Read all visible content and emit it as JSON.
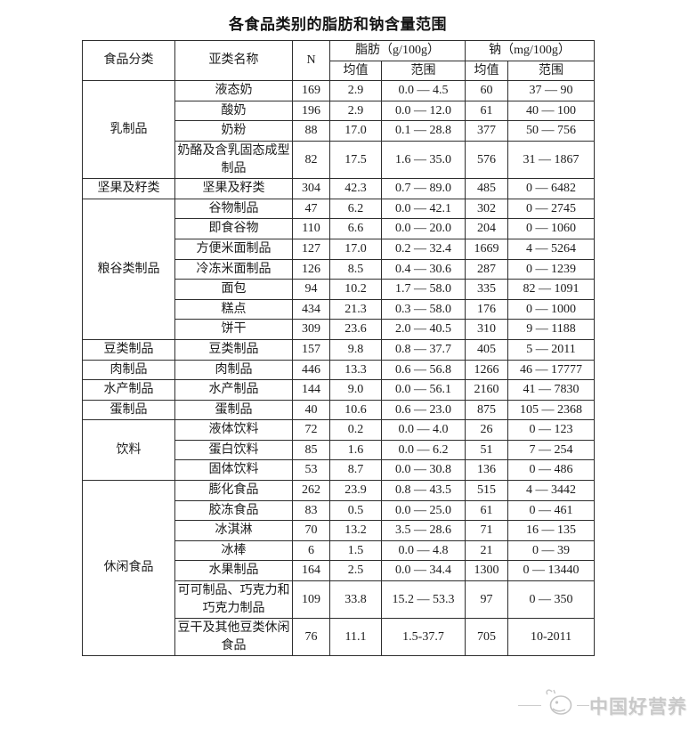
{
  "title": "各食品类别的脂肪和钠含量范围",
  "table": {
    "headers": {
      "category": "食品分类",
      "subcategory": "亚类名称",
      "n": "N",
      "fat": "脂肪（g/100g）",
      "sodium": "钠（mg/100g）",
      "mean": "均值",
      "range": "范围"
    },
    "groups": [
      {
        "category": "乳制品",
        "rows": [
          {
            "name": "液态奶",
            "n": "169",
            "fat_mean": "2.9",
            "fat_range": "0.0 — 4.5",
            "na_mean": "60",
            "na_range": "37 — 90"
          },
          {
            "name": "酸奶",
            "n": "196",
            "fat_mean": "2.9",
            "fat_range": "0.0 — 12.0",
            "na_mean": "61",
            "na_range": "40 — 100"
          },
          {
            "name": "奶粉",
            "n": "88",
            "fat_mean": "17.0",
            "fat_range": "0.1 — 28.8",
            "na_mean": "377",
            "na_range": "50 — 756"
          },
          {
            "name": "奶酪及含乳固态成型制品",
            "n": "82",
            "fat_mean": "17.5",
            "fat_range": "1.6 — 35.0",
            "na_mean": "576",
            "na_range": "31 — 1867"
          }
        ]
      },
      {
        "category": "坚果及籽类",
        "rows": [
          {
            "name": "坚果及籽类",
            "n": "304",
            "fat_mean": "42.3",
            "fat_range": "0.7 — 89.0",
            "na_mean": "485",
            "na_range": "0 — 6482"
          }
        ]
      },
      {
        "category": "粮谷类制品",
        "rows": [
          {
            "name": "谷物制品",
            "n": "47",
            "fat_mean": "6.2",
            "fat_range": "0.0 — 42.1",
            "na_mean": "302",
            "na_range": "0 — 2745"
          },
          {
            "name": "即食谷物",
            "n": "110",
            "fat_mean": "6.6",
            "fat_range": "0.0 — 20.0",
            "na_mean": "204",
            "na_range": "0 — 1060"
          },
          {
            "name": "方便米面制品",
            "n": "127",
            "fat_mean": "17.0",
            "fat_range": "0.2 — 32.4",
            "na_mean": "1669",
            "na_range": "4 — 5264"
          },
          {
            "name": "冷冻米面制品",
            "n": "126",
            "fat_mean": "8.5",
            "fat_range": "0.4 — 30.6",
            "na_mean": "287",
            "na_range": "0 — 1239"
          },
          {
            "name": "面包",
            "n": "94",
            "fat_mean": "10.2",
            "fat_range": "1.7 — 58.0",
            "na_mean": "335",
            "na_range": "82 — 1091"
          },
          {
            "name": "糕点",
            "n": "434",
            "fat_mean": "21.3",
            "fat_range": "0.3 — 58.0",
            "na_mean": "176",
            "na_range": "0 — 1000"
          },
          {
            "name": "饼干",
            "n": "309",
            "fat_mean": "23.6",
            "fat_range": "2.0 — 40.5",
            "na_mean": "310",
            "na_range": "9 — 1188"
          }
        ]
      },
      {
        "category": "豆类制品",
        "rows": [
          {
            "name": "豆类制品",
            "n": "157",
            "fat_mean": "9.8",
            "fat_range": "0.8 — 37.7",
            "na_mean": "405",
            "na_range": "5 — 2011"
          }
        ]
      },
      {
        "category": "肉制品",
        "rows": [
          {
            "name": "肉制品",
            "n": "446",
            "fat_mean": "13.3",
            "fat_range": "0.6 — 56.8",
            "na_mean": "1266",
            "na_range": "46 — 17777"
          }
        ]
      },
      {
        "category": "水产制品",
        "rows": [
          {
            "name": "水产制品",
            "n": "144",
            "fat_mean": "9.0",
            "fat_range": "0.0 — 56.1",
            "na_mean": "2160",
            "na_range": "41 — 7830"
          }
        ]
      },
      {
        "category": "蛋制品",
        "rows": [
          {
            "name": "蛋制品",
            "n": "40",
            "fat_mean": "10.6",
            "fat_range": "0.6 — 23.0",
            "na_mean": "875",
            "na_range": "105 — 2368"
          }
        ]
      },
      {
        "category": "饮料",
        "rows": [
          {
            "name": "液体饮料",
            "n": "72",
            "fat_mean": "0.2",
            "fat_range": "0.0 — 4.0",
            "na_mean": "26",
            "na_range": "0 — 123"
          },
          {
            "name": "蛋白饮料",
            "n": "85",
            "fat_mean": "1.6",
            "fat_range": "0.0 — 6.2",
            "na_mean": "51",
            "na_range": "7 — 254"
          },
          {
            "name": "固体饮料",
            "n": "53",
            "fat_mean": "8.7",
            "fat_range": "0.0 — 30.8",
            "na_mean": "136",
            "na_range": "0 — 486"
          }
        ]
      },
      {
        "category": "休闲食品",
        "rows": [
          {
            "name": "膨化食品",
            "n": "262",
            "fat_mean": "23.9",
            "fat_range": "0.8 — 43.5",
            "na_mean": "515",
            "na_range": "4 — 3442"
          },
          {
            "name": "胶冻食品",
            "n": "83",
            "fat_mean": "0.5",
            "fat_range": "0.0 — 25.0",
            "na_mean": "61",
            "na_range": "0 — 461"
          },
          {
            "name": "冰淇淋",
            "n": "70",
            "fat_mean": "13.2",
            "fat_range": "3.5 — 28.6",
            "na_mean": "71",
            "na_range": "16 — 135"
          },
          {
            "name": "冰棒",
            "n": "6",
            "fat_mean": "1.5",
            "fat_range": "0.0 — 4.8",
            "na_mean": "21",
            "na_range": "0 — 39"
          },
          {
            "name": "水果制品",
            "n": "164",
            "fat_mean": "2.5",
            "fat_range": "0.0 — 34.4",
            "na_mean": "1300",
            "na_range": "0 — 13440"
          },
          {
            "name": "可可制品、巧克力和巧克力制品",
            "n": "109",
            "fat_mean": "33.8",
            "fat_range": "15.2 — 53.3",
            "na_mean": "97",
            "na_range": "0 — 350"
          },
          {
            "name": "豆干及其他豆类休闲食品",
            "n": "76",
            "fat_mean": "11.1",
            "fat_range": "1.5-37.7",
            "na_mean": "705",
            "na_range": "10-2011"
          }
        ]
      }
    ]
  },
  "watermark": {
    "text": "中国好营养",
    "color": "#c9c9c9"
  }
}
